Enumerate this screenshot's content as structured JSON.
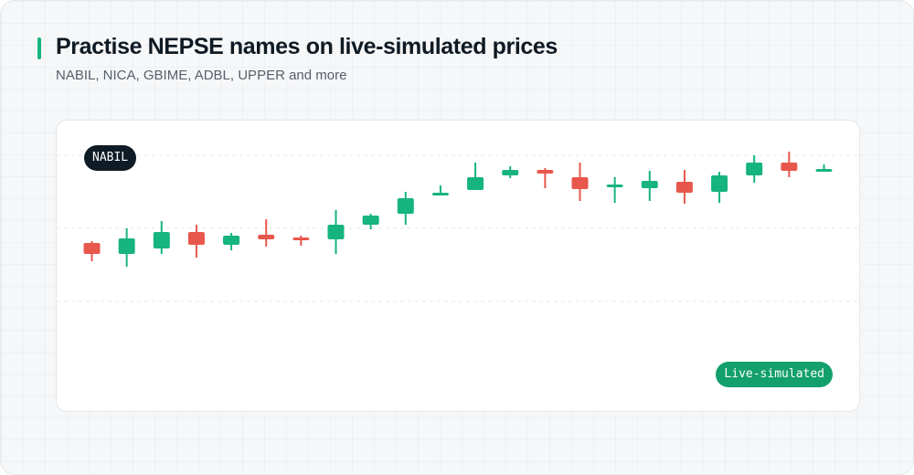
{
  "header": {
    "title": "Practise NEPSE names on live-simulated prices",
    "subtitle": "NABIL, NICA, GBIME, ADBL, UPPER and more"
  },
  "chart": {
    "ticker": "NABIL",
    "mode_label": "Live-simulated"
  },
  "colors": {
    "accent": "#16b47e",
    "up": "#16b47e",
    "down": "#e8574b",
    "gridline": "#e4e7eb",
    "pill_dark": "#0f1c26",
    "pill_green": "#14a06d"
  },
  "chart_data": {
    "type": "candlestick",
    "title": "",
    "xlabel": "",
    "ylabel": "",
    "ylim": [
      0,
      100
    ],
    "grid": "horizontal dashed",
    "candles": [
      {
        "open": 52.0,
        "close": 46.0,
        "high": 53.0,
        "low": 42.0
      },
      {
        "open": 46.0,
        "close": 54.5,
        "high": 60.0,
        "low": 39.0
      },
      {
        "open": 49.0,
        "close": 58.0,
        "high": 64.0,
        "low": 46.0
      },
      {
        "open": 58.0,
        "close": 51.0,
        "high": 62.0,
        "low": 44.0
      },
      {
        "open": 51.0,
        "close": 56.0,
        "high": 57.5,
        "low": 48.0
      },
      {
        "open": 56.5,
        "close": 54.0,
        "high": 65.0,
        "low": 50.0
      },
      {
        "open": 55.0,
        "close": 53.5,
        "high": 56.0,
        "low": 50.5
      },
      {
        "open": 54.0,
        "close": 62.0,
        "high": 70.0,
        "low": 46.0
      },
      {
        "open": 62.0,
        "close": 67.0,
        "high": 68.0,
        "low": 59.5
      },
      {
        "open": 68.0,
        "close": 76.5,
        "high": 80.0,
        "low": 62.0
      },
      {
        "open": 78.0,
        "close": 79.5,
        "high": 83.5,
        "low": 78.0
      },
      {
        "open": 81.0,
        "close": 88.0,
        "high": 96.0,
        "low": 81.0
      },
      {
        "open": 89.0,
        "close": 92.0,
        "high": 94.0,
        "low": 87.5
      },
      {
        "open": 92.0,
        "close": 90.0,
        "high": 93.0,
        "low": 82.0
      },
      {
        "open": 88.0,
        "close": 81.5,
        "high": 96.0,
        "low": 75.0
      },
      {
        "open": 83.0,
        "close": 84.0,
        "high": 88.0,
        "low": 74.0
      },
      {
        "open": 82.0,
        "close": 86.0,
        "high": 91.5,
        "low": 75.0
      },
      {
        "open": 85.5,
        "close": 79.5,
        "high": 92.0,
        "low": 73.5
      },
      {
        "open": 80.0,
        "close": 89.0,
        "high": 91.0,
        "low": 74.0
      },
      {
        "open": 89.0,
        "close": 96.0,
        "high": 100.0,
        "low": 85.0
      },
      {
        "open": 96.0,
        "close": 91.5,
        "high": 102.0,
        "low": 88.0
      },
      {
        "open": 92.0,
        "close": 92.5,
        "high": 95.0,
        "low": 91.5
      }
    ]
  }
}
